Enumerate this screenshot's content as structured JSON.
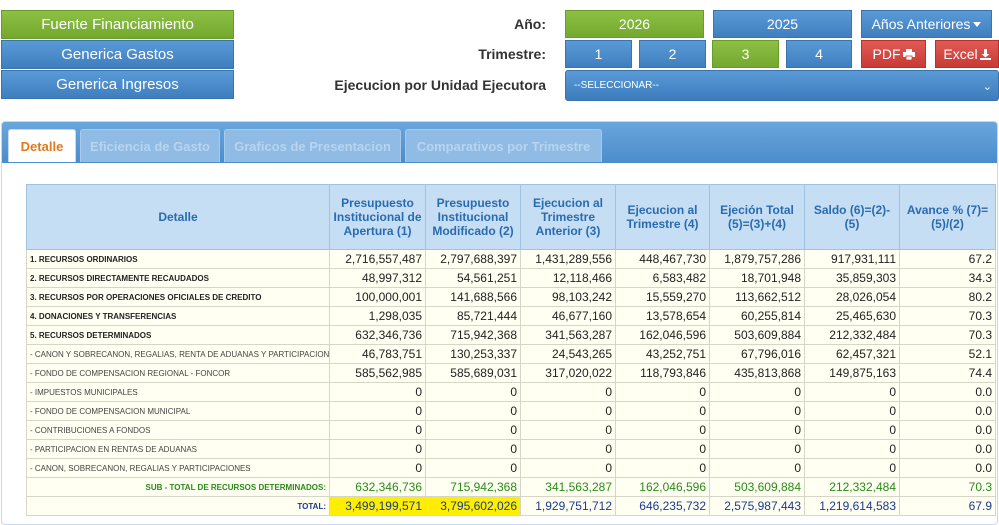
{
  "nav": {
    "fuente": "Fuente Financiamiento",
    "gastos": "Generica Gastos",
    "ingresos": "Generica Ingresos"
  },
  "filters": {
    "anio_label": "Año:",
    "trimestre_label": "Trimestre:",
    "unidad_label": "Ejecucion por Unidad Ejecutora",
    "years": [
      "2026",
      "2025"
    ],
    "anteriores": "Años Anteriores",
    "trimestres": [
      "1",
      "2",
      "3",
      "4"
    ],
    "pdf": "PDF",
    "excel": "Excel",
    "select_value": "--SELECCIONAR--"
  },
  "tabs": [
    "Detalle",
    "Eficiencia de Gasto",
    "Graficos de Presentacion",
    "Comparativos por Trimestre"
  ],
  "table": {
    "headers": [
      "Detalle",
      "Presupuesto Institucional de Apertura (1)",
      "Presupuesto Institucional Modificado (2)",
      "Ejecucion al Trimestre Anterior (3)",
      "Ejecucion al Trimestre (4)",
      "Ejeción Total (5)=(3)+(4)",
      "Saldo (6)=(2)-(5)",
      "Avance % (7)=(5)/(2)"
    ],
    "rows": [
      [
        "1. RECURSOS ORDINARIOS",
        "2,716,557,487",
        "2,797,688,397",
        "1,431,289,556",
        "448,467,730",
        "1,879,757,286",
        "917,931,111",
        "67.2"
      ],
      [
        "2. RECURSOS DIRECTAMENTE RECAUDADOS",
        "48,997,312",
        "54,561,251",
        "12,118,466",
        "6,583,482",
        "18,701,948",
        "35,859,303",
        "34.3"
      ],
      [
        "3. RECURSOS POR OPERACIONES OFICIALES DE CREDITO",
        "100,000,001",
        "141,688,566",
        "98,103,242",
        "15,559,270",
        "113,662,512",
        "28,026,054",
        "80.2"
      ],
      [
        "4. DONACIONES Y TRANSFERENCIAS",
        "1,298,035",
        "85,721,444",
        "46,677,160",
        "13,578,654",
        "60,255,814",
        "25,465,630",
        "70.3"
      ],
      [
        "5. RECURSOS DETERMINADOS",
        "632,346,736",
        "715,942,368",
        "341,563,287",
        "162,046,596",
        "503,609,884",
        "212,332,484",
        "70.3"
      ],
      [
        "- CANON Y SOBRECANON, REGALIAS, RENTA DE ADUANAS Y PARTICIPACIONES",
        "46,783,751",
        "130,253,337",
        "24,543,265",
        "43,252,751",
        "67,796,016",
        "62,457,321",
        "52.1"
      ],
      [
        "- FONDO DE COMPENSACION REGIONAL - FONCOR",
        "585,562,985",
        "585,689,031",
        "317,020,022",
        "118,793,846",
        "435,813,868",
        "149,875,163",
        "74.4"
      ],
      [
        "- IMPUESTOS MUNICIPALES",
        "0",
        "0",
        "0",
        "0",
        "0",
        "0",
        "0.0"
      ],
      [
        "- FONDO DE COMPENSACION MUNICIPAL",
        "0",
        "0",
        "0",
        "0",
        "0",
        "0",
        "0.0"
      ],
      [
        "- CONTRIBUCIONES A FONDOS",
        "0",
        "0",
        "0",
        "0",
        "0",
        "0",
        "0.0"
      ],
      [
        "- PARTICIPACION EN RENTAS DE ADUANAS",
        "0",
        "0",
        "0",
        "0",
        "0",
        "0",
        "0.0"
      ],
      [
        "- CANON, SOBRECANON, REGALIAS Y PARTICIPACIONES",
        "0",
        "0",
        "0",
        "0",
        "0",
        "0",
        "0.0"
      ]
    ],
    "subtotal": [
      "SUB - TOTAL DE RECURSOS DETERMINADOS:",
      "632,346,736",
      "715,942,368",
      "341,563,287",
      "162,046,596",
      "503,609,884",
      "212,332,484",
      "70.3"
    ],
    "total": [
      "TOTAL:",
      "3,499,199,571",
      "3,795,602,026",
      "1,929,751,712",
      "646,235,732",
      "2,575,987,443",
      "1,219,614,583",
      "67.9"
    ]
  },
  "colors": {
    "green": "#7fb43a",
    "blue": "#4a8bcb",
    "red": "#d2473f",
    "highlight": "#ffee00"
  }
}
